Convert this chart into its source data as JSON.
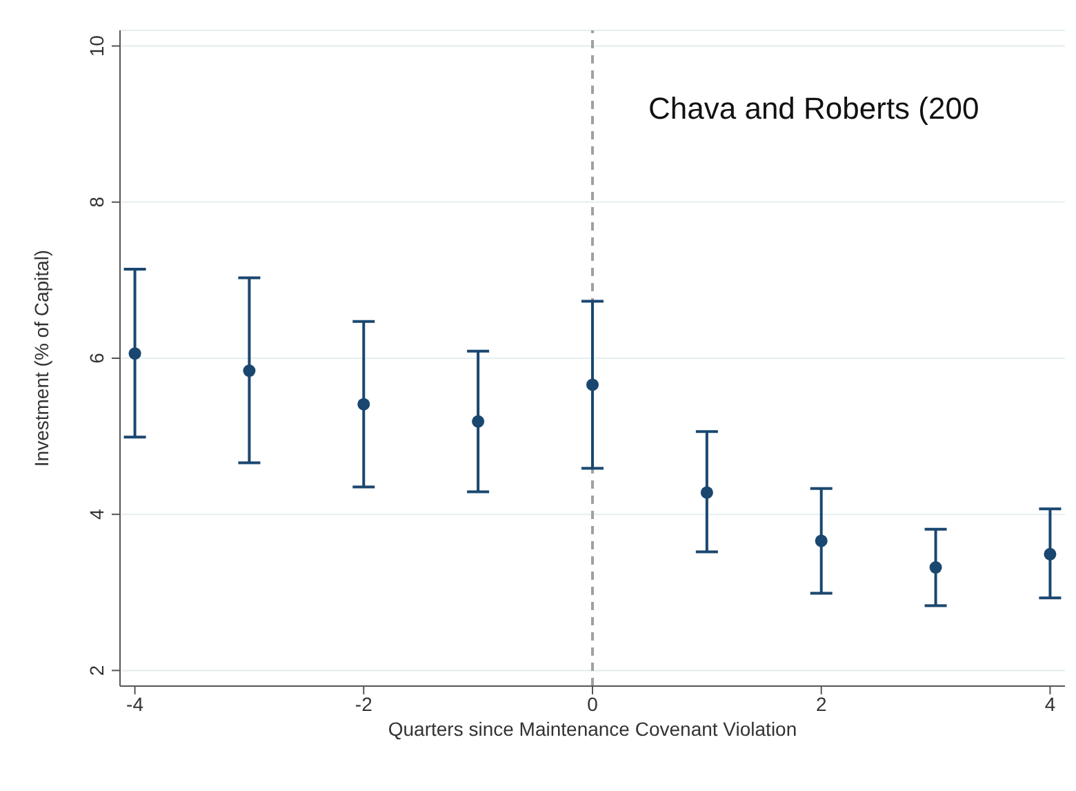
{
  "chart_data": {
    "type": "scatter",
    "xlabel": "Quarters since Maintenance Covenant Violation",
    "ylabel": "Investment (% of Capital)",
    "x": [
      -4,
      -3,
      -2,
      -1,
      0,
      1,
      2,
      3,
      4
    ],
    "series": [
      {
        "color": "#1a476f",
        "values": [
          6.06,
          5.84,
          5.41,
          5.19,
          5.66,
          4.28,
          3.66,
          3.32,
          3.49
        ],
        "errors": [
          [
            4.99,
            7.14
          ],
          [
            4.66,
            7.03
          ],
          [
            4.35,
            6.47
          ],
          [
            4.29,
            6.09
          ],
          [
            4.59,
            6.73
          ],
          [
            3.52,
            5.06
          ],
          [
            2.99,
            4.33
          ],
          [
            2.83,
            3.81
          ],
          [
            2.93,
            4.07
          ]
        ]
      }
    ],
    "xlim": [
      -4.13,
      4.13
    ],
    "xticks": [
      -4,
      -2,
      0,
      2,
      4
    ],
    "ylim": [
      1.8,
      10.2
    ],
    "yticks": [
      2,
      4,
      6,
      8,
      10
    ],
    "grid": "y",
    "marker": "circle",
    "ref_lines": [
      {
        "axis": "x",
        "value": 0,
        "color": "#a0a0a0",
        "line_style": "dashed"
      }
    ],
    "annotations": [
      "Chava and Roberts (200"
    ]
  }
}
